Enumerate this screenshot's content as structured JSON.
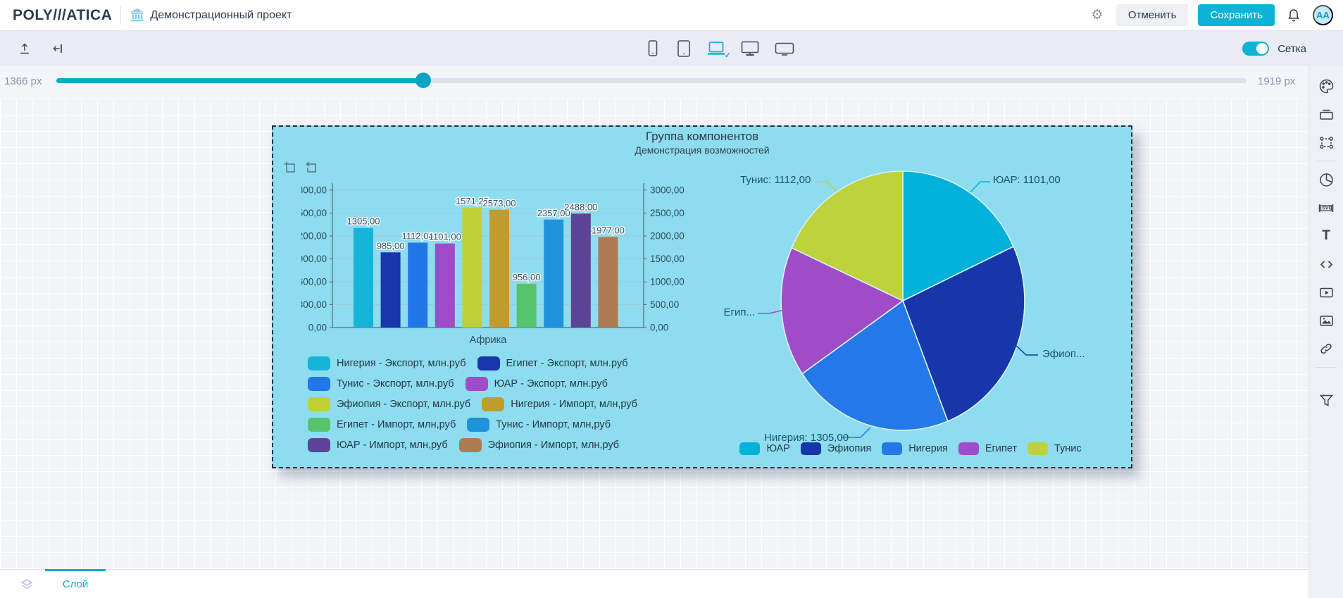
{
  "topbar": {
    "logo": "POLY///ATICA",
    "project_title": "Демонстрационный проект",
    "cancel_label": "Отменить",
    "save_label": "Сохранить",
    "avatar_initials": "AA"
  },
  "toolbar": {
    "grid_toggle_label": "Сетка",
    "grid_toggle_on": true,
    "devices": [
      "phone",
      "tablet",
      "laptop",
      "desktop",
      "tv"
    ],
    "selected_device": "laptop"
  },
  "slider": {
    "min_label": "1366 px",
    "max_label": "1919 px",
    "position_pct": 30.8
  },
  "group": {
    "title": "Группа компонентов",
    "subtitle": "Демонстрация возможностей"
  },
  "chart_data": [
    {
      "type": "bar",
      "categories": [
        "Африка"
      ],
      "xlabel": "Африка",
      "left_axis": {
        "min": 0,
        "max": 1800,
        "step": 300
      },
      "right_axis": {
        "min": 0,
        "max": 3000,
        "step": 500
      },
      "grid": true,
      "legend_position": "bottom-left",
      "series": [
        {
          "name": "Нигерия - Экспорт, млн.руб",
          "axis": "left",
          "color": "#15b4d8",
          "values": [
            1305
          ]
        },
        {
          "name": "Египет - Экспорт, млн.руб",
          "axis": "left",
          "color": "#1737ab",
          "values": [
            985
          ]
        },
        {
          "name": "Тунис - Экспорт, млн.руб",
          "axis": "left",
          "color": "#2277e8",
          "values": [
            1112
          ]
        },
        {
          "name": "ЮАР - Экспорт, млн.руб",
          "axis": "left",
          "color": "#a04bc8",
          "values": [
            1101
          ]
        },
        {
          "name": "Эфиопия - Экспорт, млн.руб",
          "axis": "left",
          "color": "#bdd137",
          "values": [
            1571.25
          ]
        },
        {
          "name": "Нигерия - Импорт, млн,руб",
          "axis": "right",
          "color": "#bf9c2b",
          "values": [
            2573
          ]
        },
        {
          "name": "Египет - Импорт, млн,руб",
          "axis": "right",
          "color": "#56c46d",
          "values": [
            956
          ]
        },
        {
          "name": "Тунис - Импорт, млн,руб",
          "axis": "right",
          "color": "#1e93dc",
          "values": [
            2357
          ]
        },
        {
          "name": "ЮАР - Импорт, млн,руб",
          "axis": "right",
          "color": "#5d4496",
          "values": [
            2488
          ]
        },
        {
          "name": "Эфиопия - Импорт, млн,руб",
          "axis": "right",
          "color": "#ae7a52",
          "values": [
            1977
          ]
        }
      ]
    },
    {
      "type": "pie",
      "legend_position": "bottom",
      "slices": [
        {
          "name": "ЮАР",
          "value": 1101,
          "color": "#00b2d9",
          "callout": "ЮАР: 1101,00"
        },
        {
          "name": "Эфиопия",
          "value": 1571.25,
          "color": "#1537a9",
          "callout": "Эфиоп..."
        },
        {
          "name": "Нигерия",
          "value": 1305,
          "color": "#2478e8",
          "callout": "Нигерия: 1305,00"
        },
        {
          "name": "Египет",
          "value": 985,
          "color": "#a04cc8",
          "callout": "Егип..."
        },
        {
          "name": "Тунис",
          "value": 1112,
          "color": "#bed23b",
          "callout": "Тунис: 1112,00"
        }
      ],
      "legend": [
        "ЮАР",
        "Эфиопия",
        "Нигерия",
        "Египет",
        "Тунис"
      ]
    }
  ],
  "sidebar_icons": [
    "palette-icon",
    "drawer-icon",
    "group-select-icon",
    "pie-chart-icon",
    "svg-icon",
    "text-icon",
    "code-icon",
    "video-icon",
    "image-icon",
    "link-icon",
    "filter-icon"
  ],
  "bottombar": {
    "layer_tab_label": "Слой"
  }
}
